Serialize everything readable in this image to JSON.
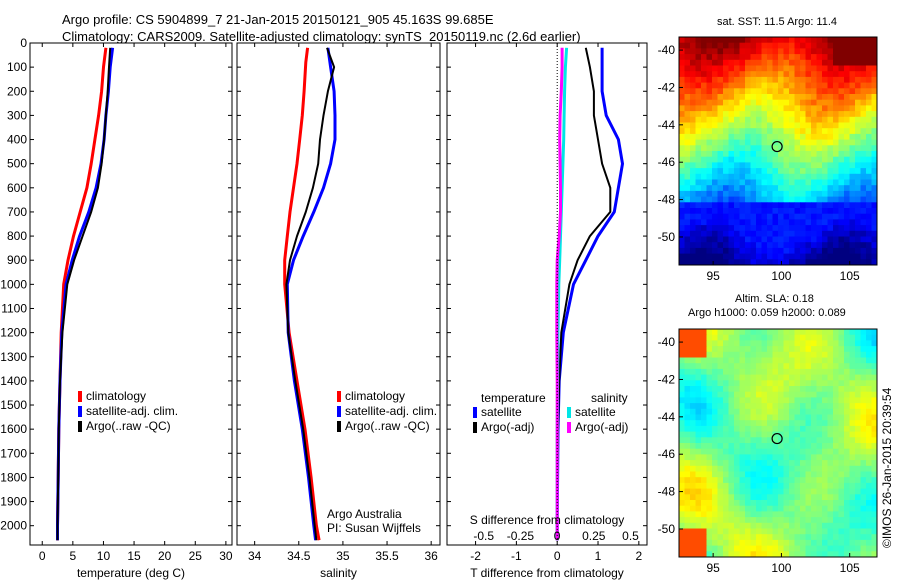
{
  "header": {
    "line1": "Argo profile: CS 5904899_7 21-Jan-2015 20150121_905 45.163S 99.685E",
    "line2": "Climatology: CARS2009. Satellite-adjusted climatology: synTS_20150119.nc (2.6d earlier)"
  },
  "colors": {
    "climatology": "#ff0000",
    "satellite": "#0000ff",
    "argo": "#000000",
    "sat_salinity": "#00e6e6",
    "argo_salinity": "#ff00ff"
  },
  "chart_data": [
    {
      "type": "line",
      "xlabel": "temperature (deg C)",
      "ylabel": "",
      "xlim": [
        -2,
        31
      ],
      "ylim": [
        2080,
        0
      ],
      "xticks": [
        0,
        5,
        10,
        15,
        20,
        25,
        30
      ],
      "yticks": [
        0,
        100,
        200,
        300,
        400,
        500,
        600,
        700,
        800,
        900,
        1000,
        1100,
        1200,
        1300,
        1400,
        1500,
        1600,
        1700,
        1800,
        1900,
        2000
      ],
      "legend": {
        "position": "center-right",
        "entries": [
          "climatology",
          "satellite-adj. clim.",
          "Argo(..raw -QC)"
        ]
      },
      "series": [
        {
          "name": "climatology",
          "color": "#ff0000",
          "x": [
            10.4,
            10.0,
            9.7,
            9.2,
            8.6,
            8.0,
            7.3,
            6.2,
            5.1,
            4.2,
            3.5,
            3.1,
            2.9,
            2.7,
            2.6,
            2.5,
            2.5
          ],
          "y": [
            20,
            100,
            200,
            300,
            400,
            500,
            600,
            700,
            800,
            900,
            1000,
            1200,
            1400,
            1600,
            1800,
            2000,
            2060
          ]
        },
        {
          "name": "satellite-adj. clim.",
          "color": "#0000ff",
          "x": [
            11.5,
            11.1,
            10.8,
            10.4,
            10.1,
            9.6,
            8.8,
            7.6,
            6.1,
            4.9,
            3.9,
            3.2,
            2.9,
            2.7,
            2.6,
            2.5,
            2.5
          ],
          "y": [
            20,
            100,
            200,
            300,
            400,
            500,
            600,
            700,
            800,
            900,
            1000,
            1200,
            1400,
            1600,
            1800,
            2000,
            2060
          ]
        },
        {
          "name": "Argo(..raw -QC)",
          "color": "#000000",
          "x": [
            11.1,
            10.9,
            10.7,
            10.4,
            10.1,
            9.7,
            9.1,
            8.0,
            6.6,
            5.2,
            4.1,
            3.3,
            2.9,
            2.7,
            2.6,
            2.5,
            2.5
          ],
          "y": [
            20,
            100,
            200,
            300,
            400,
            500,
            600,
            700,
            800,
            900,
            1000,
            1200,
            1400,
            1600,
            1800,
            2000,
            2060
          ]
        }
      ]
    },
    {
      "type": "line",
      "xlabel": "salinity",
      "ylabel": "",
      "xlim": [
        33.8,
        36.1
      ],
      "ylim": [
        2080,
        0
      ],
      "xticks": [
        34,
        34.5,
        35,
        35.5,
        36
      ],
      "xticklabels": [
        "34",
        "34.5",
        "35",
        "35.5",
        "36"
      ],
      "legend": {
        "position": "center-right",
        "entries": [
          "climatology",
          "satellite-adj. clim.",
          "Argo(..raw -QC)"
        ]
      },
      "annotation": [
        "Argo Australia",
        "PI: Susan Wijffels"
      ],
      "series": [
        {
          "name": "climatology",
          "color": "#ff0000",
          "x": [
            34.6,
            34.58,
            34.56,
            34.54,
            34.51,
            34.48,
            34.44,
            34.4,
            34.37,
            34.34,
            34.34,
            34.39,
            34.48,
            34.57,
            34.64,
            34.7,
            34.73
          ],
          "y": [
            20,
            80,
            200,
            300,
            400,
            500,
            600,
            700,
            800,
            900,
            1000,
            1200,
            1400,
            1600,
            1800,
            2000,
            2060
          ]
        },
        {
          "name": "satellite-adj. clim.",
          "color": "#0000ff",
          "x": [
            34.83,
            34.86,
            34.9,
            34.91,
            34.91,
            34.86,
            34.78,
            34.67,
            34.55,
            34.44,
            34.37,
            34.38,
            34.45,
            34.54,
            34.61,
            34.67,
            34.69
          ],
          "y": [
            20,
            100,
            200,
            300,
            400,
            500,
            600,
            700,
            800,
            900,
            1000,
            1200,
            1400,
            1600,
            1800,
            2000,
            2060
          ]
        },
        {
          "name": "Argo(..raw -QC)",
          "color": "#000000",
          "x": [
            34.82,
            34.9,
            34.83,
            34.78,
            34.74,
            34.72,
            34.66,
            34.58,
            34.48,
            34.4,
            34.36,
            34.38,
            34.46,
            34.55,
            34.62,
            34.68,
            34.7
          ],
          "y": [
            20,
            100,
            200,
            300,
            400,
            500,
            600,
            700,
            800,
            900,
            1000,
            1200,
            1400,
            1600,
            1800,
            2000,
            2060
          ]
        }
      ]
    },
    {
      "type": "line",
      "xlabel": "T difference from climatology",
      "xlabel_top": "S difference from climatology",
      "ylabel": "",
      "xlim": [
        -2.7,
        2.2
      ],
      "ylim": [
        2080,
        0
      ],
      "xticks": [
        -2,
        -1,
        0,
        1,
        2
      ],
      "top_ticks": [
        -0.5,
        -0.25,
        0,
        0.25,
        0.5
      ],
      "top_ticklabels": [
        "-0.5",
        "-0.25",
        "0",
        "0.25",
        "0.5"
      ],
      "legend": {
        "position": "center",
        "columns": [
          {
            "title": "temperature",
            "entries": [
              "satellite",
              "Argo(-adj)"
            ]
          },
          {
            "title": "salinity",
            "entries": [
              "satellite",
              "Argo(-adj)"
            ]
          }
        ]
      },
      "series": [
        {
          "name": "satellite",
          "group": "temperature",
          "color": "#0000ff",
          "x": [
            1.1,
            1.1,
            1.1,
            1.2,
            1.5,
            1.6,
            1.5,
            1.4,
            1.0,
            0.7,
            0.4,
            0.15,
            0.05,
            0.02,
            0.01,
            0.0,
            0.0
          ],
          "y": [
            20,
            100,
            200,
            300,
            400,
            500,
            600,
            700,
            800,
            900,
            1000,
            1200,
            1400,
            1600,
            1800,
            2000,
            2060
          ]
        },
        {
          "name": "Argo(-adj)",
          "group": "temperature",
          "color": "#000000",
          "x": [
            0.7,
            0.8,
            0.9,
            0.9,
            1.0,
            1.1,
            1.3,
            1.3,
            0.8,
            0.5,
            0.3,
            0.1,
            0.05,
            0.02,
            0.01,
            0.0,
            0.0
          ],
          "y": [
            20,
            100,
            200,
            300,
            400,
            500,
            600,
            700,
            800,
            900,
            1000,
            1200,
            1400,
            1600,
            1800,
            2000,
            2060
          ]
        },
        {
          "name": "satellite",
          "group": "salinity",
          "color": "#00e6e6",
          "x": [
            0.23,
            0.2,
            0.18,
            0.17,
            0.16,
            0.14,
            0.12,
            0.1,
            0.08,
            0.06,
            0.04,
            0.02,
            0.01,
            0.0,
            0.0,
            0.0,
            0.0
          ],
          "y": [
            20,
            100,
            200,
            300,
            400,
            500,
            600,
            700,
            800,
            900,
            1000,
            1200,
            1400,
            1600,
            1800,
            2000,
            2060
          ]
        },
        {
          "name": "Argo(-adj)",
          "group": "salinity",
          "color": "#ff00ff",
          "x": [
            0.12,
            0.12,
            0.1,
            0.07,
            0.06,
            0.07,
            0.08,
            0.08,
            0.05,
            0.0,
            -0.01,
            -0.01,
            0.0,
            0.0,
            0.0,
            0.0,
            0.0
          ],
          "y": [
            20,
            100,
            200,
            300,
            400,
            500,
            600,
            700,
            800,
            900,
            1000,
            1200,
            1400,
            1600,
            1800,
            2000,
            2060
          ]
        }
      ]
    },
    {
      "type": "heatmap",
      "title": "sat. SST: 11.5  Argo: 11.4",
      "xlim": [
        92.5,
        107
      ],
      "ylim": [
        -51.5,
        -39.3
      ],
      "xticks": [
        95,
        100,
        105
      ],
      "yticks": [
        -40,
        -42,
        -44,
        -46,
        -48,
        -50
      ],
      "marker": {
        "lon": 99.685,
        "lat": -45.163
      },
      "colormap": "jet",
      "field": "sea surface temperature"
    },
    {
      "type": "heatmap",
      "title": "Altim. SLA: 0.18",
      "subtitle": "Argo h1000: 0.059 h2000: 0.089",
      "xlim": [
        92.5,
        107
      ],
      "ylim": [
        -51.5,
        -39.3
      ],
      "xticks": [
        95,
        100,
        105
      ],
      "yticks": [
        -40,
        -42,
        -44,
        -46,
        -48,
        -50
      ],
      "marker": {
        "lon": 99.685,
        "lat": -45.163
      },
      "colormap": "jet",
      "field": "sea level anomaly"
    }
  ],
  "footer": {
    "stamp": "©IMOS 26-Jan-2015 20:39:54"
  }
}
